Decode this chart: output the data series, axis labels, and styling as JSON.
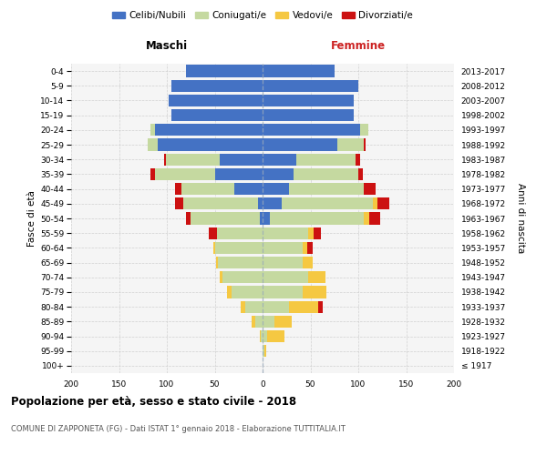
{
  "age_groups": [
    "100+",
    "95-99",
    "90-94",
    "85-89",
    "80-84",
    "75-79",
    "70-74",
    "65-69",
    "60-64",
    "55-59",
    "50-54",
    "45-49",
    "40-44",
    "35-39",
    "30-34",
    "25-29",
    "20-24",
    "15-19",
    "10-14",
    "5-9",
    "0-4"
  ],
  "birth_years": [
    "≤ 1917",
    "1918-1922",
    "1923-1927",
    "1928-1932",
    "1933-1937",
    "1938-1942",
    "1943-1947",
    "1948-1952",
    "1953-1957",
    "1958-1962",
    "1963-1967",
    "1968-1972",
    "1973-1977",
    "1978-1982",
    "1983-1987",
    "1988-1992",
    "1993-1997",
    "1998-2002",
    "2003-2007",
    "2008-2012",
    "2013-2017"
  ],
  "males_celibi": [
    0,
    0,
    0,
    0,
    0,
    0,
    0,
    0,
    0,
    0,
    3,
    5,
    30,
    50,
    45,
    110,
    112,
    95,
    98,
    95,
    80
  ],
  "males_coniugati": [
    0,
    0,
    2,
    8,
    18,
    32,
    42,
    47,
    50,
    48,
    72,
    78,
    55,
    62,
    56,
    10,
    5,
    0,
    0,
    0,
    0
  ],
  "males_vedovi": [
    0,
    0,
    1,
    3,
    5,
    5,
    3,
    2,
    1,
    0,
    0,
    0,
    0,
    0,
    0,
    0,
    0,
    0,
    0,
    0,
    0
  ],
  "males_divorziati": [
    0,
    0,
    0,
    0,
    0,
    0,
    0,
    0,
    0,
    8,
    5,
    8,
    6,
    5,
    2,
    0,
    0,
    0,
    0,
    0,
    0
  ],
  "females_nubili": [
    0,
    0,
    0,
    0,
    0,
    0,
    0,
    0,
    0,
    0,
    8,
    20,
    28,
    32,
    35,
    78,
    102,
    95,
    95,
    100,
    75
  ],
  "females_coniugate": [
    0,
    2,
    5,
    12,
    28,
    42,
    48,
    42,
    42,
    48,
    98,
    95,
    78,
    68,
    62,
    28,
    8,
    0,
    0,
    0,
    0
  ],
  "females_vedove": [
    0,
    2,
    18,
    18,
    30,
    25,
    18,
    10,
    5,
    5,
    5,
    5,
    0,
    0,
    0,
    0,
    0,
    0,
    0,
    0,
    0
  ],
  "females_divorziate": [
    0,
    0,
    0,
    0,
    5,
    0,
    0,
    0,
    5,
    8,
    12,
    12,
    12,
    5,
    5,
    2,
    0,
    0,
    0,
    0,
    0
  ],
  "color_celibi": "#4472C4",
  "color_coniugati": "#C5D9A0",
  "color_vedovi": "#F5C842",
  "color_divorziati": "#CC1111",
  "title_main": "Popolazione per età, sesso e stato civile - 2018",
  "title_sub": "COMUNE DI ZAPPONETA (FG) - Dati ISTAT 1° gennaio 2018 - Elaborazione TUTTITALIA.IT",
  "label_maschi": "Maschi",
  "label_femmine": "Femmine",
  "ylabel_left": "Fasce di età",
  "ylabel_right": "Anni di nascita",
  "legend_labels": [
    "Celibi/Nubili",
    "Coniugati/e",
    "Vedovi/e",
    "Divorziati/e"
  ],
  "xlim": 200
}
